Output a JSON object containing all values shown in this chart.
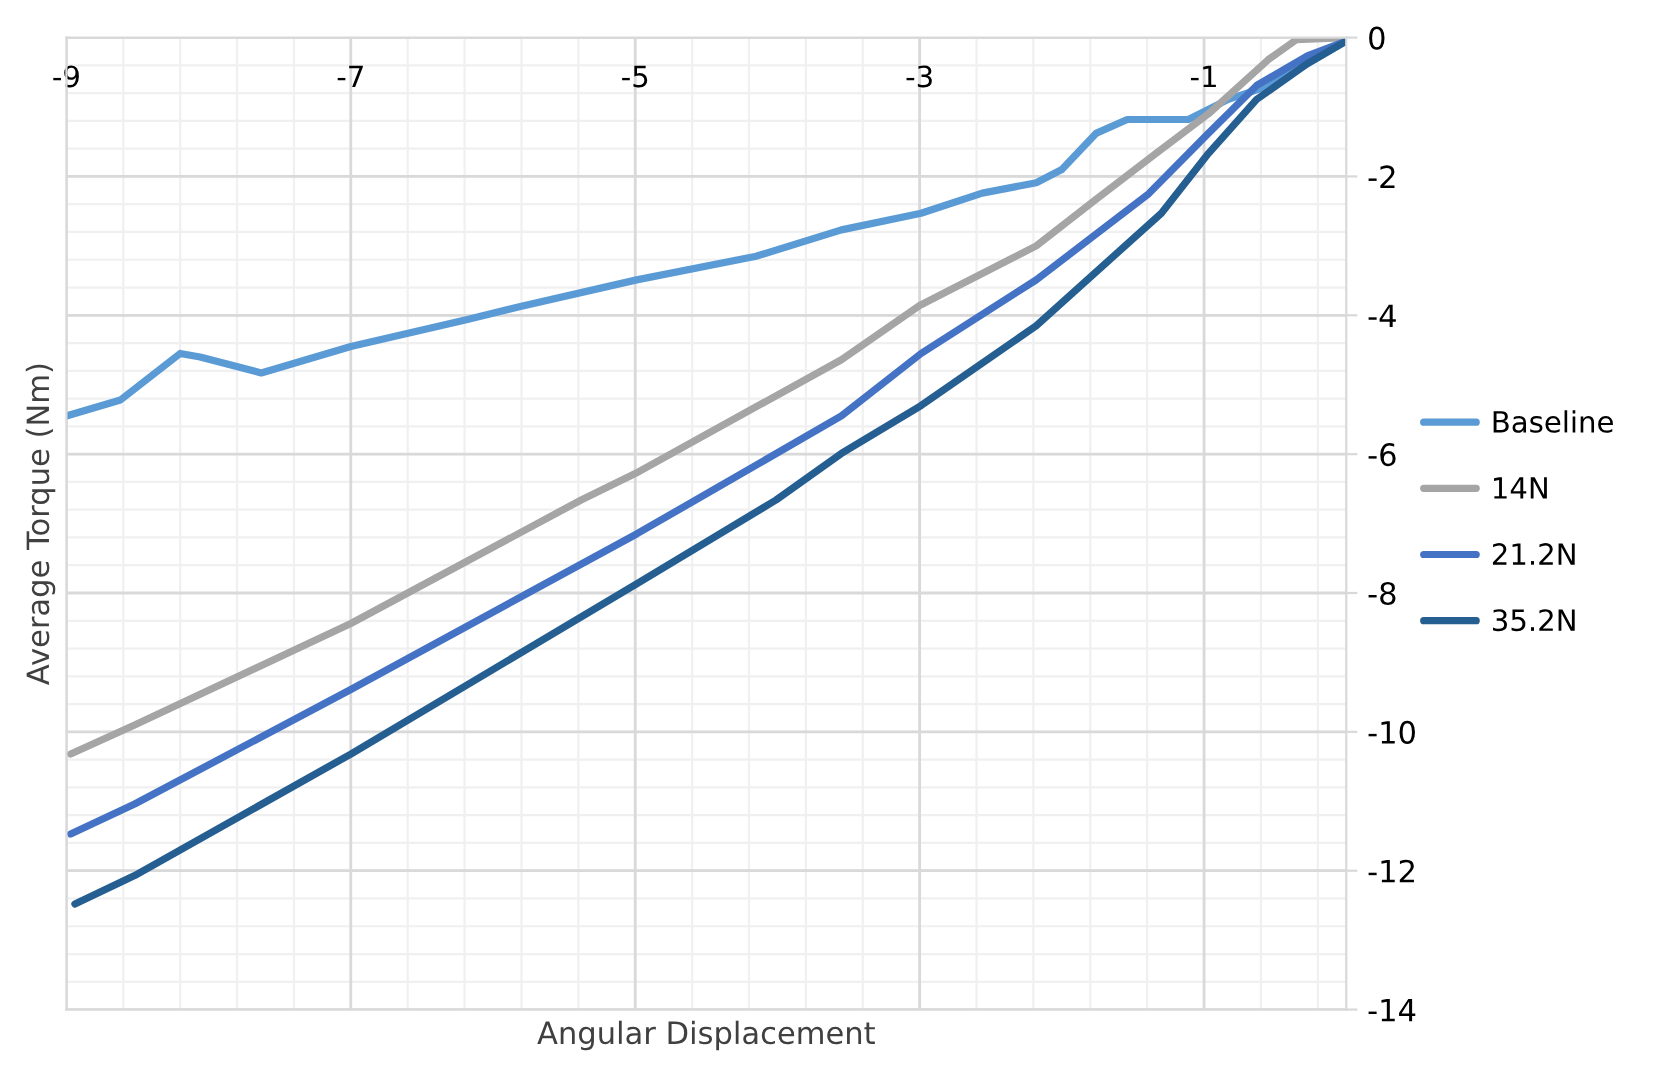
{
  "chart_data": {
    "type": "line",
    "xlabel": "Angular Displacement",
    "ylabel": "Average Torque (Nm)",
    "xlim": [
      -9,
      0
    ],
    "ylim": [
      -14,
      0
    ],
    "xticks": [
      -9,
      -7,
      -5,
      -3,
      -1
    ],
    "yticks": [
      0,
      -2,
      -4,
      -6,
      -8,
      -10,
      -12,
      -14
    ],
    "grid": true,
    "legend": "right",
    "marker": "none",
    "line_style": "solid",
    "series": [
      {
        "name": "Baseline",
        "color": "#5b9bd5",
        "x": [
          -9,
          -8.62,
          -8.2,
          -8.06,
          -7.63,
          -7,
          -6.18,
          -5.8,
          -4.99,
          -4.15,
          -3.55,
          -2.99,
          -2.56,
          -2.18,
          -2.0,
          -1.76,
          -1.54,
          -1.11,
          -0.83,
          -0.55,
          -0.27,
          0
        ],
        "values": [
          -5.45,
          -5.22,
          -4.55,
          -4.6,
          -4.83,
          -4.45,
          -4.06,
          -3.87,
          -3.49,
          -3.15,
          -2.77,
          -2.53,
          -2.24,
          -2.09,
          -1.9,
          -1.38,
          -1.18,
          -1.18,
          -0.89,
          -0.7,
          -0.37,
          -0.05
        ]
      },
      {
        "name": "14N",
        "color": "#a5a5a5",
        "x": [
          -8.97,
          -8.52,
          -7,
          -5.38,
          -5,
          -3.55,
          -3,
          -2.18,
          -1.76,
          -1.34,
          -0.97,
          -0.55,
          -0.35,
          0
        ],
        "values": [
          -10.32,
          -9.9,
          -8.44,
          -6.66,
          -6.28,
          -4.64,
          -3.86,
          -3.0,
          -2.33,
          -1.67,
          -1.1,
          -0.32,
          -0.03,
          0
        ]
      },
      {
        "name": "21.2N",
        "color": "#4472c4",
        "x": [
          -8.97,
          -8.52,
          -7,
          -4.99,
          -3.55,
          -2.99,
          -2.18,
          -1.39,
          -0.97,
          -0.63,
          -0.27,
          0
        ],
        "values": [
          -11.47,
          -11.04,
          -9.39,
          -7.15,
          -5.45,
          -4.55,
          -3.49,
          -2.25,
          -1.38,
          -0.69,
          -0.26,
          -0.05
        ]
      },
      {
        "name": "35.2N",
        "color": "#255e91",
        "x": [
          -8.94,
          -8.52,
          -7,
          -4.99,
          -4.01,
          -3.55,
          -2.99,
          -2.18,
          -1.3,
          -0.97,
          -0.63,
          -0.27,
          0
        ],
        "values": [
          -12.48,
          -12.07,
          -10.32,
          -7.87,
          -6.66,
          -5.99,
          -5.3,
          -4.15,
          -2.53,
          -1.67,
          -0.89,
          -0.37,
          -0.05
        ]
      }
    ]
  }
}
